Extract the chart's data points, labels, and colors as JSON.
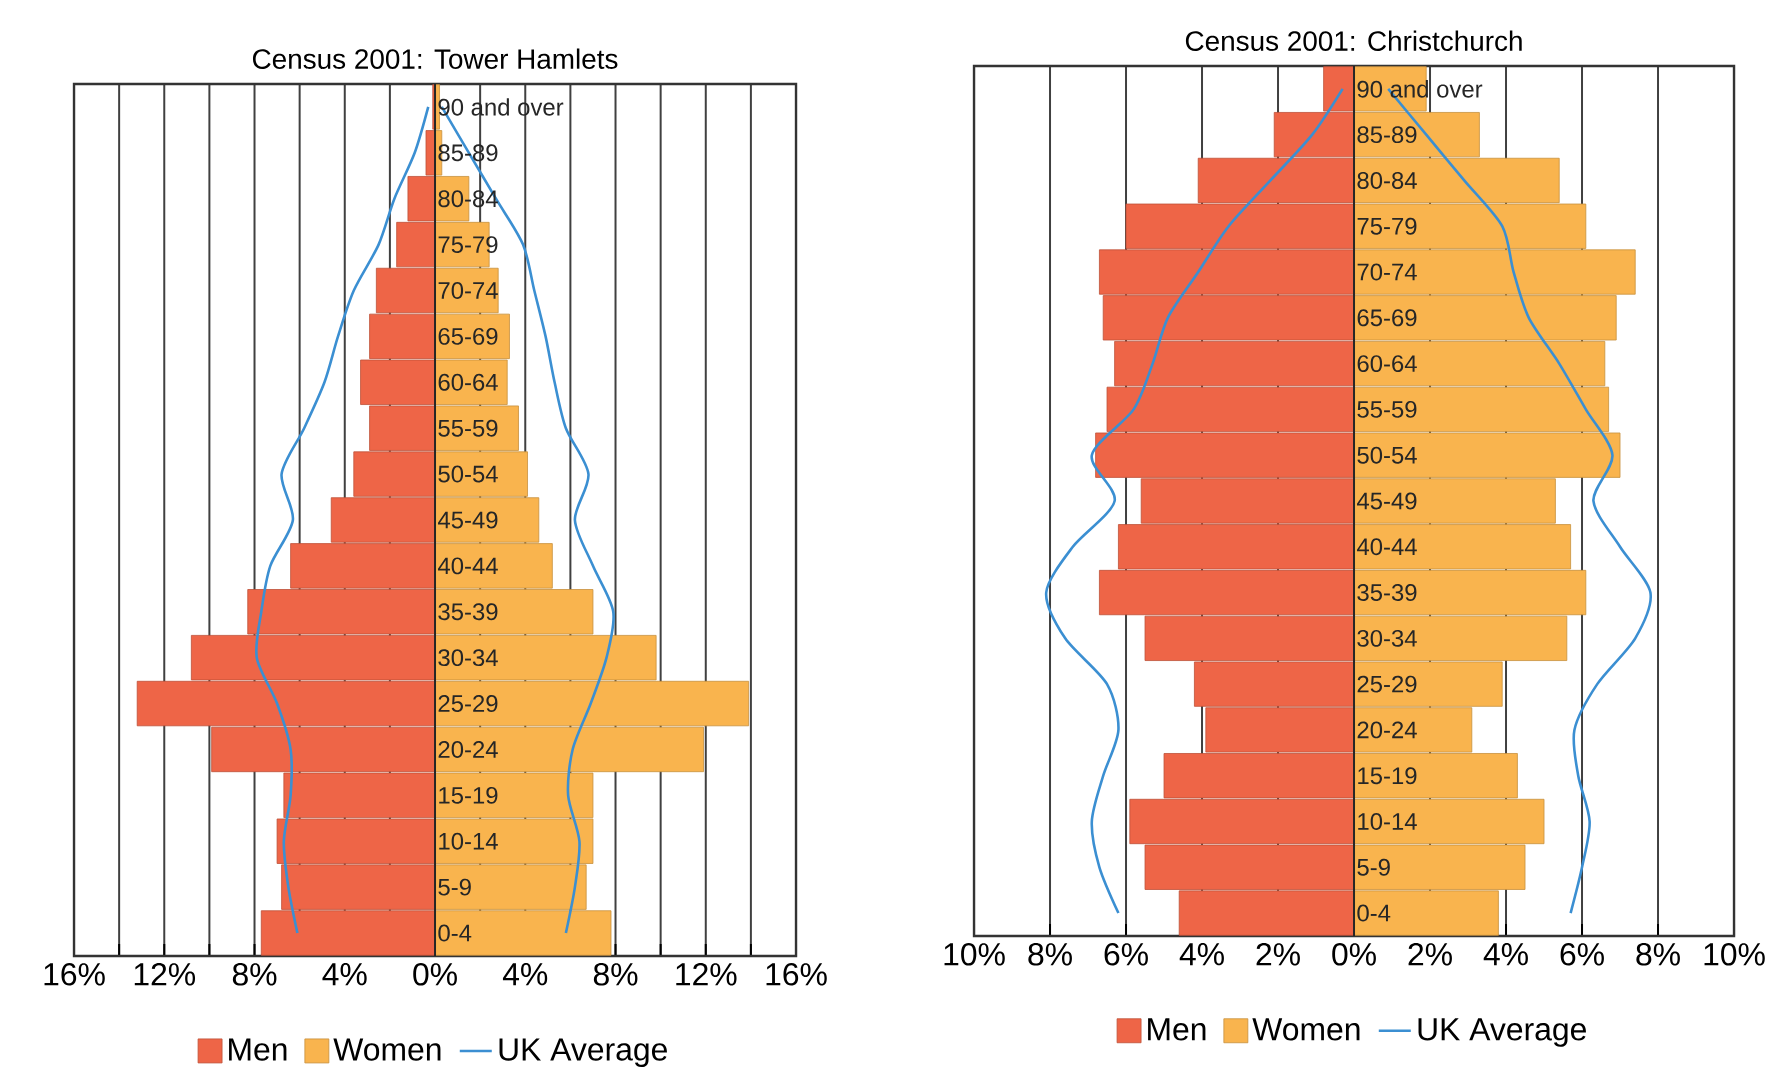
{
  "chart_data": [
    {
      "type": "bar",
      "orientation": "horizontal",
      "title": "Census 2001: Tower Hamlets",
      "categories": [
        "90 and over",
        "85-89",
        "80-84",
        "75-79",
        "70-74",
        "65-69",
        "60-64",
        "55-59",
        "50-54",
        "45-49",
        "40-44",
        "35-39",
        "30-34",
        "25-29",
        "20-24",
        "15-19",
        "10-14",
        "5-9",
        "0-4"
      ],
      "series": [
        {
          "name": "Men",
          "color": "#ee6547",
          "values": [
            -0.1,
            -0.4,
            -1.2,
            -1.7,
            -2.6,
            -2.9,
            -3.3,
            -2.9,
            -3.6,
            -4.6,
            -6.4,
            -8.3,
            -10.8,
            -13.2,
            -9.9,
            -6.7,
            -7.0,
            -6.8,
            -7.7
          ]
        },
        {
          "name": "Women",
          "color": "#f9b44e",
          "values": [
            0.2,
            0.3,
            1.5,
            2.4,
            2.8,
            3.3,
            3.2,
            3.7,
            4.1,
            4.6,
            5.2,
            7.0,
            9.8,
            13.9,
            11.9,
            7.0,
            7.0,
            6.7,
            7.8
          ]
        },
        {
          "name": "UK Average",
          "type": "line",
          "color": "#3b8fd2",
          "values": [
            -0.3,
            -0.9,
            -1.8,
            -2.5,
            -3.6,
            -4.3,
            -4.9,
            -5.8,
            -6.8,
            -6.3,
            -7.3,
            -7.7,
            -7.9,
            -7.0,
            -6.4,
            -6.4,
            -6.7,
            -6.5,
            -6.1
          ]
        },
        {
          "type": "line",
          "color": "#3b8fd2",
          "values": [
            0.3,
            1.5,
            2.7,
            3.9,
            4.4,
            4.9,
            5.3,
            5.8,
            6.8,
            6.2,
            7.0,
            7.9,
            7.6,
            6.9,
            6.1,
            5.9,
            6.4,
            6.2,
            5.8
          ]
        }
      ],
      "xlim": [
        -16,
        16
      ],
      "xticks": [
        {
          "value": -16,
          "label": "16%"
        },
        {
          "value": -14,
          "label": null
        },
        {
          "value": -12,
          "label": "12%"
        },
        {
          "value": -10,
          "label": null
        },
        {
          "value": -8,
          "label": "8%"
        },
        {
          "value": -6,
          "label": null
        },
        {
          "value": -4,
          "label": "4%"
        },
        {
          "value": -2,
          "label": null
        },
        {
          "value": 0,
          "label": "0%"
        },
        {
          "value": 2,
          "label": null
        },
        {
          "value": 4,
          "label": "4%"
        },
        {
          "value": 6,
          "label": null
        },
        {
          "value": 8,
          "label": "8%"
        },
        {
          "value": 10,
          "label": null
        },
        {
          "value": 12,
          "label": "12%"
        },
        {
          "value": 14,
          "label": null
        },
        {
          "value": 16,
          "label": "16%"
        }
      ],
      "grid": "x",
      "legend": "bottom",
      "stacked": true
    },
    {
      "type": "bar",
      "orientation": "horizontal",
      "title": "Census 2001: Christchurch",
      "categories": [
        "90 and over",
        "85-89",
        "80-84",
        "75-79",
        "70-74",
        "65-69",
        "60-64",
        "55-59",
        "50-54",
        "45-49",
        "40-44",
        "35-39",
        "30-34",
        "25-29",
        "20-24",
        "15-19",
        "10-14",
        "5-9",
        "0-4"
      ],
      "series": [
        {
          "name": "Men",
          "color": "#ee6547",
          "values": [
            -0.8,
            -2.1,
            -4.1,
            -6.0,
            -6.7,
            -6.6,
            -6.3,
            -6.5,
            -6.8,
            -5.6,
            -6.2,
            -6.7,
            -5.5,
            -4.2,
            -3.9,
            -5.0,
            -5.9,
            -5.5,
            -4.6
          ]
        },
        {
          "name": "Women",
          "color": "#f9b44e",
          "values": [
            1.9,
            3.3,
            5.4,
            6.1,
            7.4,
            6.9,
            6.6,
            6.7,
            7.0,
            5.3,
            5.7,
            6.1,
            5.6,
            3.9,
            3.1,
            4.3,
            5.0,
            4.5,
            3.8
          ]
        },
        {
          "name": "UK Average",
          "type": "line",
          "color": "#3b8fd2",
          "values": [
            -0.3,
            -1.1,
            -2.2,
            -3.3,
            -4.1,
            -4.9,
            -5.3,
            -5.8,
            -6.9,
            -6.3,
            -7.4,
            -8.1,
            -7.6,
            -6.5,
            -6.2,
            -6.6,
            -6.9,
            -6.7,
            -6.2
          ]
        },
        {
          "type": "line",
          "color": "#3b8fd2",
          "values": [
            0.9,
            1.9,
            2.9,
            3.9,
            4.2,
            4.6,
            5.4,
            6.1,
            6.8,
            6.3,
            7.0,
            7.8,
            7.4,
            6.4,
            5.8,
            5.9,
            6.2,
            6.0,
            5.7
          ]
        }
      ],
      "xlim": [
        -10,
        10
      ],
      "xticks": [
        {
          "value": -10,
          "label": "10%"
        },
        {
          "value": -8,
          "label": "8%"
        },
        {
          "value": -6,
          "label": "6%"
        },
        {
          "value": -4,
          "label": "4%"
        },
        {
          "value": -2,
          "label": "2%"
        },
        {
          "value": 0,
          "label": "0%"
        },
        {
          "value": 2,
          "label": "2%"
        },
        {
          "value": 4,
          "label": "4%"
        },
        {
          "value": 6,
          "label": "6%"
        },
        {
          "value": 8,
          "label": "8%"
        },
        {
          "value": 10,
          "label": "10%"
        }
      ],
      "grid": "x",
      "legend": "bottom",
      "stacked": true
    }
  ]
}
